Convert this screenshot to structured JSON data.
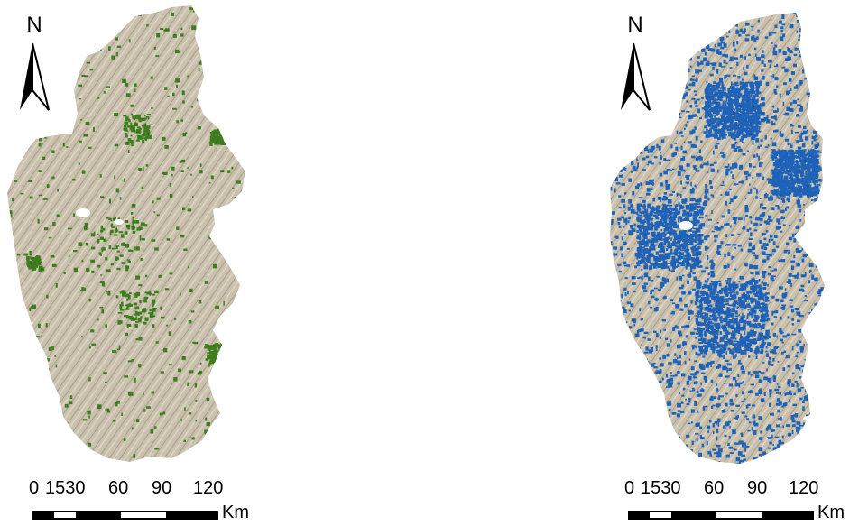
{
  "maps": [
    {
      "id": "left",
      "north_label": "N",
      "base_color": "#c9c0ad",
      "overlay_color": "#3d7d1e",
      "overlay_density": "sparse",
      "scale_ticks": [
        "0",
        "1530",
        "60",
        "90",
        "120"
      ],
      "scale_unit": "Km"
    },
    {
      "id": "right",
      "north_label": "N",
      "base_color": "#c9c0ad",
      "overlay_color": "#1e63b8",
      "overlay_density": "dense",
      "scale_ticks": [
        "0",
        "1530",
        "60",
        "90",
        "120"
      ],
      "scale_unit": "Km"
    }
  ]
}
